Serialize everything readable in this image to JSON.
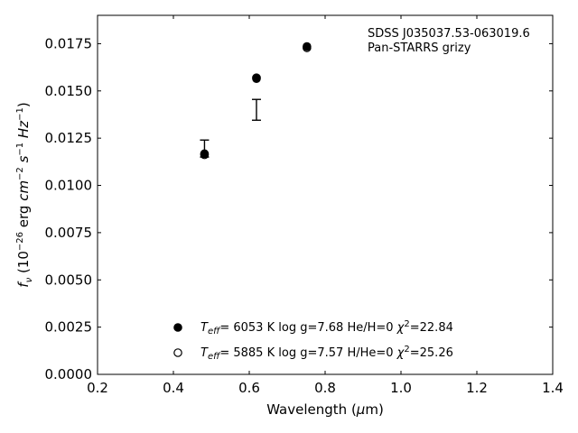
{
  "chart_data": {
    "type": "scatter",
    "title": "",
    "annotations": [
      "SDSS J035037.53-063019.6",
      "Pan-STARRS grizy"
    ],
    "xlabel": "Wavelength (μm)",
    "ylabel": "fν (10⁻²⁶ erg cm⁻² s⁻¹ Hz⁻¹)",
    "xlim": [
      0.2,
      1.4
    ],
    "ylim": [
      0.0,
      0.019
    ],
    "x_ticks": [
      "0.2",
      "0.4",
      "0.6",
      "0.8",
      "1.0",
      "1.2",
      "1.4"
    ],
    "y_ticks": [
      "0.0000",
      "0.0025",
      "0.0050",
      "0.0075",
      "0.0100",
      "0.0125",
      "0.0150",
      "0.0175"
    ],
    "grid": false,
    "legend_position": "bottom-center",
    "observed": {
      "x": [
        0.482,
        0.619
      ],
      "y": [
        0.01195,
        0.014
      ],
      "yerr": [
        0.00045,
        0.00055
      ]
    },
    "series": [
      {
        "name": "He/H=0",
        "marker": "filled-circle",
        "legend": {
          "teff": "6053 K",
          "logg": "log g=7.68",
          "comp": "He/H=0",
          "chi2": "=22.84"
        },
        "x": [
          0.482,
          0.619,
          0.752
        ],
        "y": [
          0.01168,
          0.01565,
          0.01735
        ]
      },
      {
        "name": "H/He=0",
        "marker": "open-circle",
        "legend": {
          "teff": "5885 K",
          "logg": "log g=7.57",
          "comp": "H/He=0",
          "chi2": "=25.26"
        },
        "x": [
          0.482,
          0.619,
          0.752
        ],
        "y": [
          0.01162,
          0.0157,
          0.01728
        ]
      }
    ]
  }
}
